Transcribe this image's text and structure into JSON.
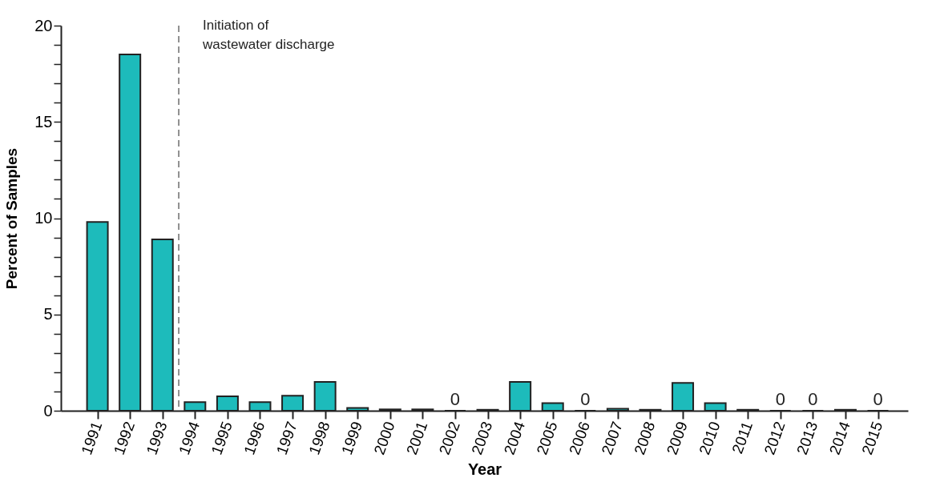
{
  "chart_data": {
    "type": "bar",
    "xlabel": "Year",
    "ylabel": "Percent of Samples",
    "x": [
      1991,
      1992,
      1993,
      1994,
      1995,
      1996,
      1997,
      1998,
      1999,
      2000,
      2001,
      2002,
      2003,
      2004,
      2005,
      2006,
      2007,
      2008,
      2009,
      2010,
      2011,
      2012,
      2013,
      2014,
      2015
    ],
    "values": [
      9.8,
      18.5,
      8.9,
      0.45,
      0.75,
      0.45,
      0.78,
      1.5,
      0.15,
      0.07,
      0.07,
      0,
      0.05,
      1.5,
      0.4,
      0,
      0.1,
      0.05,
      1.45,
      0.4,
      0.05,
      0,
      0,
      0.05,
      0
    ],
    "value_labels": [
      null,
      null,
      null,
      null,
      null,
      null,
      null,
      null,
      null,
      null,
      null,
      "0",
      null,
      null,
      null,
      "0",
      null,
      null,
      null,
      null,
      null,
      "0",
      "0",
      null,
      "0"
    ],
    "color": "#1dbbbb",
    "xlim": [
      1990,
      2015.8
    ],
    "xticks": [
      1991,
      1992,
      1993,
      1994,
      1995,
      1996,
      1997,
      1998,
      1999,
      2000,
      2001,
      2002,
      2003,
      2004,
      2005,
      2006,
      2007,
      2008,
      2009,
      2010,
      2011,
      2012,
      2013,
      2014,
      2015
    ],
    "ylim": [
      0,
      20
    ],
    "yticks": [
      0,
      {
        "value": 1,
        "label": null
      },
      {
        "value": 2,
        "label": null
      },
      {
        "value": 3,
        "label": null
      },
      {
        "value": 4,
        "label": null
      },
      5,
      {
        "value": 6,
        "label": null
      },
      {
        "value": 7,
        "label": null
      },
      {
        "value": 8,
        "label": null
      },
      {
        "value": 9,
        "label": null
      },
      10,
      {
        "value": 11,
        "label": null
      },
      {
        "value": 12,
        "label": null
      },
      {
        "value": 13,
        "label": null
      },
      {
        "value": 14,
        "label": null
      },
      15,
      {
        "value": 16,
        "label": null
      },
      {
        "value": 17,
        "label": null
      },
      {
        "value": 18,
        "label": null
      },
      {
        "value": 19,
        "label": null
      },
      20
    ],
    "ref_lines": [
      {
        "axis": "x",
        "value": 1993.5,
        "label": "Initiation of\nwastewater discharge",
        "line_style": "dashed"
      }
    ],
    "grid": false
  }
}
